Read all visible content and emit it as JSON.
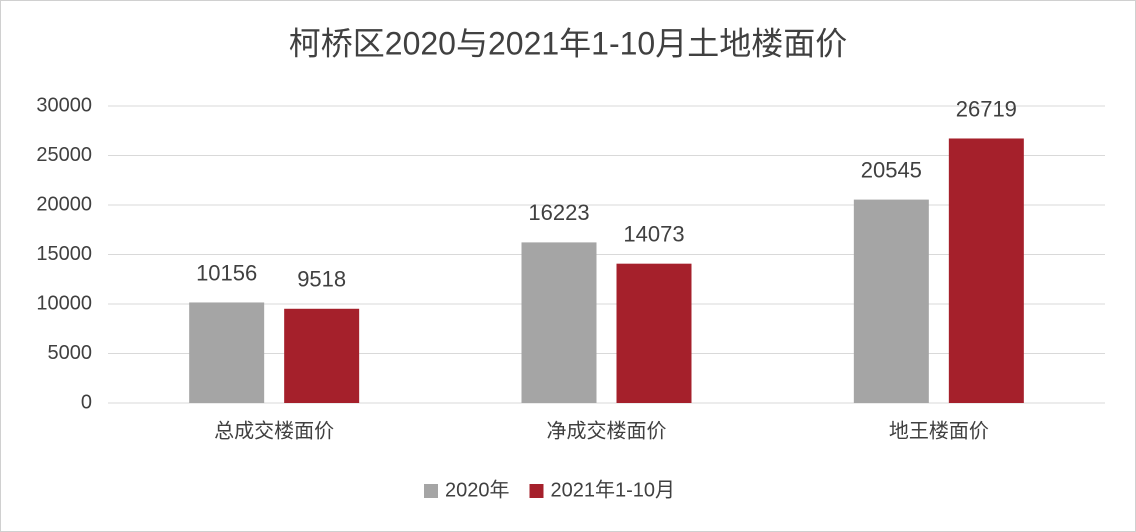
{
  "chart_data": {
    "type": "bar",
    "title": "柯桥区2020与2021年1-10月土地楼面价",
    "categories": [
      "总成交楼面价",
      "净成交楼面价",
      "地王楼面价"
    ],
    "series": [
      {
        "name": "2020年",
        "color": "#a5a5a5",
        "values": [
          10156,
          16223,
          20545
        ]
      },
      {
        "name": "2021年1-10月",
        "color": "#a5202b",
        "values": [
          9518,
          14073,
          26719
        ]
      }
    ],
    "ylim": [
      0,
      30000
    ],
    "yticks": [
      0,
      5000,
      10000,
      15000,
      20000,
      25000,
      30000
    ],
    "grid": true,
    "legend": "bottom"
  }
}
